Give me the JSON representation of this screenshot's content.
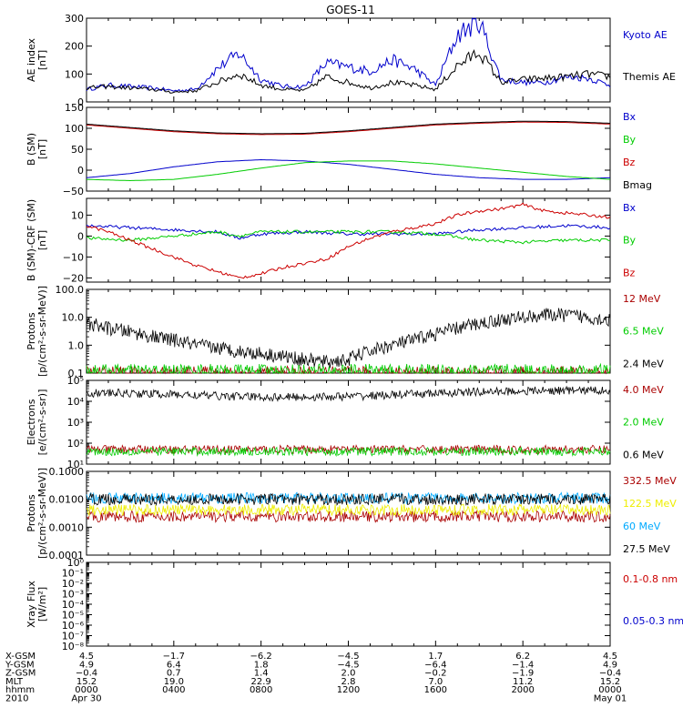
{
  "title": "GOES-11",
  "chart_data": [
    {
      "type": "line",
      "panel": "ae",
      "ylabel": [
        "AE index",
        "[nT]"
      ],
      "ylim": [
        0,
        300
      ],
      "scale": "linear",
      "yticks": [
        0,
        100,
        200,
        300
      ],
      "ytick_labels": [
        "0",
        "100",
        "200",
        "300"
      ],
      "series": [
        {
          "name": "Kyoto AE",
          "color": "#0000cc",
          "x": [
            0,
            1,
            2,
            3,
            4,
            5,
            6,
            7,
            8,
            9,
            10,
            11,
            12,
            13,
            14,
            15,
            16,
            17,
            18,
            19,
            20,
            21,
            22,
            23,
            24
          ],
          "y": [
            45,
            60,
            55,
            50,
            40,
            45,
            120,
            175,
            80,
            55,
            55,
            140,
            125,
            110,
            150,
            120,
            60,
            240,
            290,
            80,
            70,
            70,
            90,
            85,
            60
          ]
        },
        {
          "name": "Themis AE",
          "color": "#000000",
          "x": [
            0,
            1,
            2,
            3,
            4,
            5,
            6,
            7,
            8,
            9,
            10,
            11,
            12,
            13,
            14,
            15,
            16,
            17,
            18,
            19,
            20,
            21,
            22,
            23,
            24
          ],
          "y": [
            50,
            55,
            50,
            45,
            35,
            40,
            70,
            100,
            60,
            45,
            40,
            90,
            70,
            50,
            70,
            60,
            45,
            130,
            180,
            70,
            80,
            85,
            90,
            100,
            90
          ]
        }
      ]
    },
    {
      "type": "line",
      "panel": "bsm",
      "ylabel": [
        "B (SM)",
        "[nT]"
      ],
      "ylim": [
        -50,
        150
      ],
      "scale": "linear",
      "yticks": [
        -50,
        0,
        50,
        100,
        150
      ],
      "ytick_labels": [
        "−50",
        "0",
        "50",
        "100",
        "150"
      ],
      "series": [
        {
          "name": "Bx",
          "color": "#0000cc",
          "x": [
            0,
            2,
            4,
            6,
            8,
            10,
            12,
            14,
            16,
            18,
            20,
            22,
            24
          ],
          "y": [
            -18,
            -8,
            8,
            20,
            25,
            22,
            14,
            2,
            -10,
            -18,
            -22,
            -22,
            -18
          ]
        },
        {
          "name": "By",
          "color": "#00cc00",
          "x": [
            0,
            2,
            4,
            6,
            8,
            10,
            12,
            14,
            16,
            18,
            20,
            22,
            24
          ],
          "y": [
            -22,
            -25,
            -22,
            -10,
            5,
            18,
            22,
            22,
            15,
            5,
            -5,
            -15,
            -22
          ]
        },
        {
          "name": "Bz",
          "color": "#cc0000",
          "x": [
            0,
            2,
            4,
            6,
            8,
            10,
            12,
            14,
            16,
            18,
            20,
            22,
            24
          ],
          "y": [
            108,
            100,
            92,
            87,
            85,
            86,
            92,
            100,
            108,
            112,
            115,
            114,
            110
          ]
        },
        {
          "name": "Bmag",
          "color": "#000000",
          "x": [
            0,
            2,
            4,
            6,
            8,
            10,
            12,
            14,
            16,
            18,
            20,
            22,
            24
          ],
          "y": [
            110,
            102,
            94,
            89,
            87,
            88,
            94,
            102,
            110,
            114,
            117,
            116,
            112
          ]
        }
      ]
    },
    {
      "type": "line",
      "panel": "bdiff",
      "ylabel": [
        "B (SM)-CRF (SM)",
        "[nT]"
      ],
      "ylim": [
        -22,
        18
      ],
      "scale": "linear",
      "yticks": [
        -20,
        -10,
        0,
        10
      ],
      "ytick_labels": [
        "−20",
        "−10",
        "0",
        "10"
      ],
      "series": [
        {
          "name": "Bx",
          "color": "#0000cc",
          "x": [
            0,
            2,
            4,
            6,
            7,
            8,
            10,
            12,
            14,
            16,
            18,
            20,
            22,
            24
          ],
          "y": [
            5,
            4,
            3,
            2,
            -1,
            1,
            2,
            1,
            1,
            1,
            3,
            4,
            5,
            4
          ]
        },
        {
          "name": "By",
          "color": "#00cc00",
          "x": [
            0,
            2,
            4,
            6,
            7,
            8,
            10,
            12,
            14,
            16,
            18,
            20,
            22,
            24
          ],
          "y": [
            -1,
            -2,
            0,
            2,
            0,
            2,
            2,
            2,
            2,
            1,
            -2,
            -3,
            -2,
            -2
          ]
        },
        {
          "name": "Bz",
          "color": "#cc0000",
          "x": [
            0,
            1,
            2,
            3,
            4,
            5,
            6,
            7,
            8,
            9,
            10,
            11,
            12,
            13,
            14,
            15,
            16,
            17,
            18,
            19,
            20,
            21,
            22,
            23,
            24
          ],
          "y": [
            5,
            2,
            -2,
            -6,
            -10,
            -14,
            -17,
            -20,
            -18,
            -15,
            -13,
            -11,
            -5,
            -1,
            2,
            4,
            6,
            10,
            12,
            13,
            15,
            12,
            11,
            10,
            9
          ]
        }
      ]
    },
    {
      "type": "line",
      "panel": "protons_low",
      "ylabel": [
        "Protons",
        "[p/(cm²-s-sr-MeV)]"
      ],
      "ylim": [
        0.1,
        100
      ],
      "scale": "log",
      "yticks": [
        0.1,
        1,
        10,
        100
      ],
      "ytick_labels": [
        "0.1",
        "1.0",
        "10.0",
        "100.0"
      ],
      "series": [
        {
          "name": "12 MeV",
          "color": "#aa0000",
          "x": [
            0,
            24
          ],
          "y": [
            0.1,
            0.1
          ]
        },
        {
          "name": "6.5 MeV",
          "color": "#00cc00",
          "x": [
            0,
            24
          ],
          "y": [
            0.12,
            0.12
          ]
        },
        {
          "name": "2.4 MeV",
          "color": "#000000",
          "x": [
            0,
            1,
            2,
            3,
            4,
            5,
            6,
            7,
            8,
            9,
            10,
            11,
            12,
            13,
            14,
            15,
            16,
            17,
            18,
            19,
            20,
            21,
            22,
            23,
            24
          ],
          "y": [
            6,
            4,
            3,
            2,
            1.5,
            1,
            0.8,
            0.6,
            0.5,
            0.4,
            0.3,
            0.25,
            0.3,
            0.6,
            1,
            1.5,
            2.5,
            4,
            6,
            8,
            10,
            12,
            12,
            10,
            8
          ]
        }
      ]
    },
    {
      "type": "line",
      "panel": "electrons",
      "ylabel": [
        "Electrons",
        "[e/(cm²-s-sr)]"
      ],
      "ylim": [
        10,
        100000
      ],
      "scale": "log",
      "yticks": [
        10,
        100,
        1000,
        10000,
        100000
      ],
      "ytick_labels": [
        "10¹",
        "10²",
        "10³",
        "10⁴",
        "10⁵"
      ],
      "series": [
        {
          "name": "4.0 MeV",
          "color": "#aa0000",
          "x": [
            0,
            24
          ],
          "y": [
            50,
            50
          ]
        },
        {
          "name": "2.0 MeV",
          "color": "#00cc00",
          "x": [
            0,
            24
          ],
          "y": [
            40,
            40
          ]
        },
        {
          "name": "0.6 MeV",
          "color": "#000000",
          "x": [
            0,
            2,
            4,
            6,
            8,
            10,
            12,
            14,
            16,
            18,
            20,
            22,
            24
          ],
          "y": [
            25000,
            24000,
            21000,
            18000,
            16000,
            16000,
            17000,
            20000,
            24000,
            28000,
            31000,
            33000,
            34000
          ]
        }
      ]
    },
    {
      "type": "line",
      "panel": "protons_high",
      "ylabel": [
        "Protons",
        "[p/(cm²-s-sr-MeV)]"
      ],
      "ylim": [
        0.0001,
        0.1
      ],
      "scale": "log",
      "yticks": [
        0.0001,
        0.001,
        0.01,
        0.1
      ],
      "ytick_labels": [
        "0.0001",
        "0.0010",
        "0.0100",
        "0.1000"
      ],
      "series": [
        {
          "name": "332.5 MeV",
          "color": "#aa0000",
          "x": [
            0,
            24
          ],
          "y": [
            0.0024,
            0.0024
          ]
        },
        {
          "name": "122.5 MeV",
          "color": "#eeee00",
          "x": [
            0,
            24
          ],
          "y": [
            0.0042,
            0.0042
          ]
        },
        {
          "name": "60 MeV",
          "color": "#00aaff",
          "x": [
            0,
            24
          ],
          "y": [
            0.011,
            0.011
          ]
        },
        {
          "name": "27.5 MeV",
          "color": "#000000",
          "x": [
            0,
            24
          ],
          "y": [
            0.01,
            0.01
          ]
        }
      ]
    },
    {
      "type": "line",
      "panel": "xray",
      "ylabel": [
        "Xray Flux",
        "[W/m²]"
      ],
      "ylim": [
        1e-08,
        1
      ],
      "scale": "log",
      "yticks": [
        1e-08,
        1e-07,
        1e-06,
        1e-05,
        0.0001,
        0.001,
        0.01,
        0.1,
        1
      ],
      "ytick_labels": [
        "10⁻⁸",
        "10⁻⁷",
        "10⁻⁶",
        "10⁻⁵",
        "10⁻⁴",
        "10⁻³",
        "10⁻²",
        "10⁻¹",
        "10⁰"
      ],
      "series": [
        {
          "name": "0.1-0.8 nm",
          "color": "#cc0000",
          "x": [],
          "y": []
        },
        {
          "name": "0.05-0.3 nm",
          "color": "#0000cc",
          "x": [],
          "y": []
        }
      ]
    }
  ],
  "xaxis": {
    "xlim": [
      0,
      24
    ],
    "rows": [
      {
        "label": "X-GSM",
        "values": [
          "4.5",
          "−1.7",
          "−6.2",
          "−4.5",
          "1.7",
          "6.2",
          "4.5"
        ]
      },
      {
        "label": "Y-GSM",
        "values": [
          "4.9",
          "6.4",
          "1.8",
          "−4.5",
          "−6.4",
          "−1.4",
          "4.9"
        ]
      },
      {
        "label": "Z-GSM",
        "values": [
          "−0.4",
          "0.7",
          "1.4",
          "2.0",
          "−0.2",
          "−1.9",
          "−0.4"
        ]
      },
      {
        "label": "MLT",
        "values": [
          "15.2",
          "19.0",
          "22.9",
          "2.8",
          "7.0",
          "11.2",
          "15.2"
        ]
      },
      {
        "label": "hhmm",
        "values": [
          "0000",
          "0400",
          "0800",
          "1200",
          "1600",
          "2000",
          "0000"
        ]
      }
    ],
    "year_label": "2010",
    "date_start": "Apr 30",
    "date_end": "May 01"
  }
}
